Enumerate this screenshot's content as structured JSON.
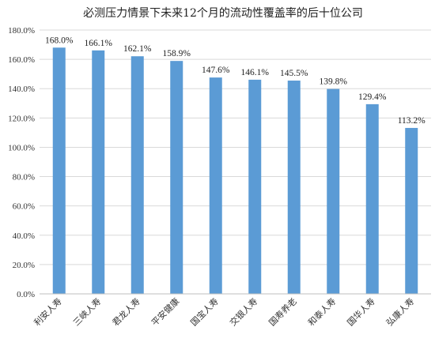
{
  "chart_data": {
    "type": "bar",
    "title": "必测压力情景下未来12个月的流动性覆盖率的后十位公司",
    "categories": [
      "利安人寿",
      "三峡人寿",
      "君龙人寿",
      "平安健康",
      "国宝人寿",
      "交银人寿",
      "国寿养老",
      "和泰人寿",
      "国华人寿",
      "弘康人寿"
    ],
    "values": [
      168.0,
      166.1,
      162.1,
      158.9,
      147.6,
      146.1,
      145.5,
      139.8,
      129.4,
      113.2
    ],
    "value_labels": [
      "168.0%",
      "166.1%",
      "162.1%",
      "158.9%",
      "147.6%",
      "146.1%",
      "145.5%",
      "139.8%",
      "129.4%",
      "113.2%"
    ],
    "ylim": [
      0,
      180
    ],
    "yticks": [
      0,
      20,
      40,
      60,
      80,
      100,
      120,
      140,
      160,
      180
    ],
    "ytick_labels": [
      "0.0%",
      "20.0%",
      "40.0%",
      "60.0%",
      "80.0%",
      "100.0%",
      "120.0%",
      "140.0%",
      "160.0%",
      "180.0%"
    ],
    "xlabel": "",
    "ylabel": "",
    "grid": true,
    "bar_color": "#5b9bd5"
  }
}
